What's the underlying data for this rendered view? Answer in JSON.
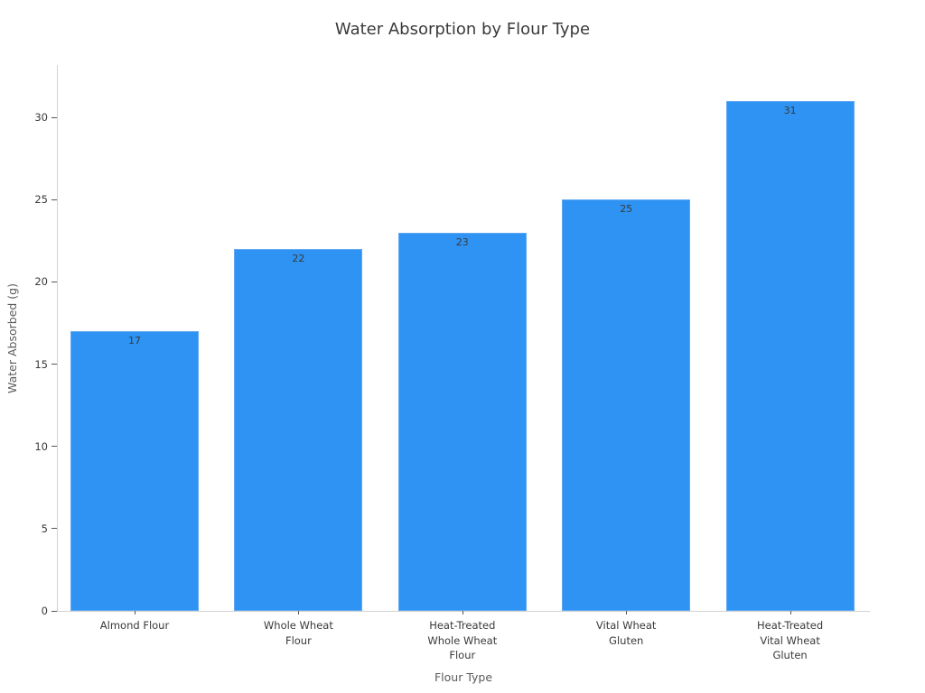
{
  "chart_data": {
    "type": "bar",
    "title": "Water Absorption by Flour Type",
    "xlabel": "Flour Type",
    "ylabel": "Water Absorbed (g)",
    "categories": [
      "Almond Flour",
      "Whole Wheat\nFlour",
      "Heat-Treated\nWhole Wheat\nFlour",
      "Vital Wheat\nGluten",
      "Heat-Treated\nVital Wheat\nGluten"
    ],
    "values": [
      17,
      22,
      23,
      25,
      31
    ],
    "yticks": [
      0,
      5,
      10,
      15,
      20,
      25,
      30
    ],
    "ylim": [
      0,
      33.2
    ],
    "grid": false,
    "legend": "none",
    "value_labels_shown": true,
    "bar_color": "#2e93f2",
    "bar_edge_color": "#5fa8f3",
    "value_label_color": "#3a3a3a",
    "tick_label_color": "#3a3a3a",
    "axis_title_color": "#5a5a5a",
    "spine_color": "#d2d2d2",
    "background_color": "#ffffff"
  }
}
